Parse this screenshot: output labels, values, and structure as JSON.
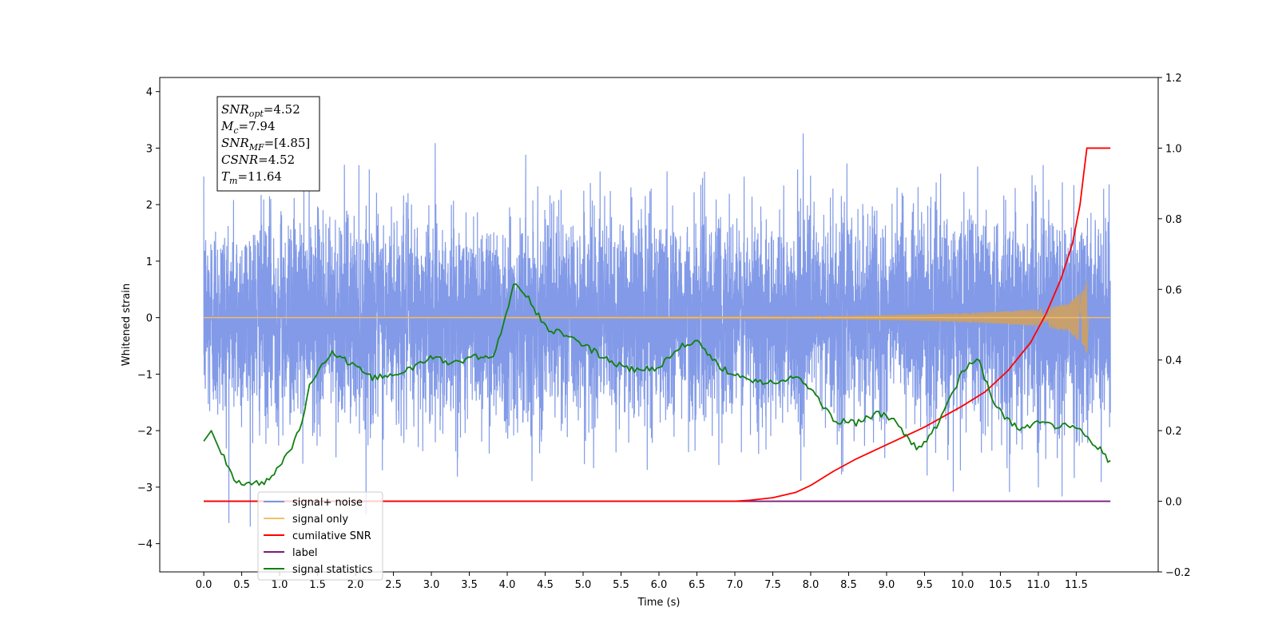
{
  "chart_data": {
    "type": "line",
    "xlabel": "Time (s)",
    "ylabel": "Whitened strain",
    "ylabel_right": "",
    "xlim": [
      -0.58,
      12.58
    ],
    "ylim": [
      -4.5,
      4.25
    ],
    "ylim_right": [
      -0.2,
      1.2
    ],
    "x_ticks": [
      "0.0",
      "0.5",
      "1.0",
      "1.5",
      "2.0",
      "2.5",
      "3.0",
      "3.5",
      "4.0",
      "4.5",
      "5.0",
      "5.5",
      "6.0",
      "6.5",
      "7.0",
      "7.5",
      "8.0",
      "8.5",
      "9.0",
      "9.5",
      "10.0",
      "10.5",
      "11.0",
      "11.5"
    ],
    "y_ticks": [
      "4",
      "3",
      "2",
      "1",
      "0",
      "−1",
      "−2",
      "−3",
      "−4"
    ],
    "y_ticks_right": [
      "1.2",
      "1.0",
      "0.8",
      "0.6",
      "0.4",
      "0.2",
      "0.0",
      "−0.2"
    ],
    "legend_position": "lower-left",
    "annotation": {
      "lines": [
        {
          "main": "SNR",
          "sub": "opt",
          "rest": "=4.52"
        },
        {
          "main": "M",
          "sub": "c",
          "rest": "=7.94"
        },
        {
          "main": "SNR",
          "sub": "MF",
          "rest": "=[4.85]"
        },
        {
          "main": "CSNR",
          "sub": "",
          "rest": "=4.52"
        },
        {
          "main": "T",
          "sub": "m",
          "rest": "=11.64"
        }
      ]
    },
    "series": [
      {
        "name": "signal+ noise",
        "color": "#7b95e6",
        "axis": "left",
        "description": "whitened noisy strain, approx. gaussian, std ~0.9, spanning 0.0 to 11.95 s",
        "amplitude_std": 0.9,
        "x_range": [
          0.0,
          11.95
        ]
      },
      {
        "name": "signal only",
        "color": "#f5be6b",
        "axis": "left",
        "description": "chirp signal, near zero until ~7.5 s, growing to ~0.7 amplitude at merger 11.64 s",
        "envelope": {
          "x": [
            0.0,
            7.5,
            8.5,
            9.5,
            10.5,
            11.0,
            11.4,
            11.6,
            11.64,
            11.66,
            11.95
          ],
          "amp": [
            0.0,
            0.01,
            0.03,
            0.06,
            0.11,
            0.15,
            0.25,
            0.5,
            0.7,
            0.0,
            0.0
          ]
        }
      },
      {
        "name": "cumilative SNR",
        "color": "#ff0000",
        "axis": "right",
        "x": [
          0.0,
          6.5,
          7.0,
          7.2,
          7.5,
          7.8,
          8.0,
          8.3,
          8.6,
          9.0,
          9.5,
          10.0,
          10.3,
          10.6,
          10.9,
          11.1,
          11.3,
          11.45,
          11.55,
          11.6,
          11.64,
          11.95
        ],
        "y": [
          0.0,
          0.0,
          0.0,
          0.003,
          0.01,
          0.025,
          0.045,
          0.085,
          0.12,
          0.16,
          0.21,
          0.27,
          0.31,
          0.37,
          0.45,
          0.53,
          0.63,
          0.73,
          0.84,
          0.93,
          1.0,
          1.0
        ]
      },
      {
        "name": "label",
        "color": "#7b1c7b",
        "axis": "right",
        "x": [
          0.0,
          11.95
        ],
        "y": [
          0.0,
          0.0
        ]
      },
      {
        "name": "signal statistics",
        "color": "#128012",
        "axis": "right",
        "x": [
          0.0,
          0.1,
          0.2,
          0.3,
          0.4,
          0.6,
          0.8,
          0.9,
          1.0,
          1.2,
          1.3,
          1.4,
          1.5,
          1.7,
          2.0,
          2.2,
          2.5,
          2.8,
          3.0,
          3.3,
          3.6,
          3.8,
          3.95,
          4.1,
          4.3,
          4.5,
          4.8,
          5.1,
          5.4,
          5.7,
          6.0,
          6.3,
          6.5,
          6.8,
          7.0,
          7.3,
          7.5,
          7.8,
          8.0,
          8.3,
          8.6,
          8.9,
          9.1,
          9.4,
          9.6,
          9.8,
          10.0,
          10.2,
          10.4,
          10.6,
          10.8,
          11.0,
          11.2,
          11.4,
          11.6,
          11.8,
          11.95
        ],
        "y": [
          0.17,
          0.2,
          0.15,
          0.11,
          0.06,
          0.045,
          0.055,
          0.07,
          0.1,
          0.17,
          0.23,
          0.33,
          0.37,
          0.42,
          0.38,
          0.35,
          0.36,
          0.38,
          0.41,
          0.39,
          0.41,
          0.4,
          0.5,
          0.62,
          0.57,
          0.49,
          0.47,
          0.43,
          0.39,
          0.37,
          0.38,
          0.44,
          0.45,
          0.38,
          0.36,
          0.34,
          0.34,
          0.35,
          0.32,
          0.23,
          0.22,
          0.25,
          0.23,
          0.15,
          0.19,
          0.27,
          0.37,
          0.41,
          0.28,
          0.23,
          0.2,
          0.23,
          0.21,
          0.22,
          0.19,
          0.15,
          0.11
        ]
      }
    ]
  }
}
